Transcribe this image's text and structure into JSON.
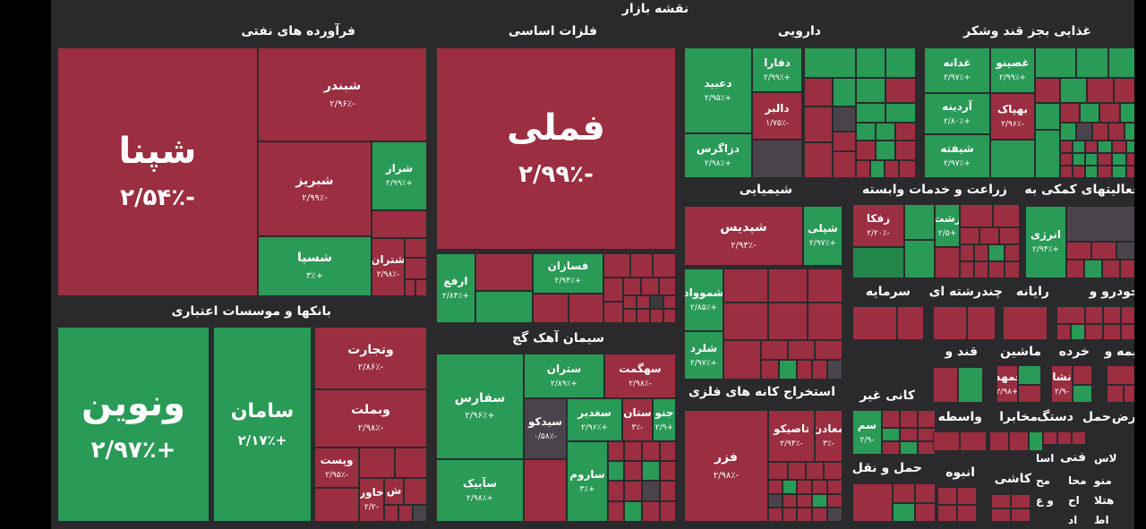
{
  "title": "نقشه بازار",
  "groups": [
    {
      "id": "oil",
      "label": "فرآورده های نفتی"
    },
    {
      "id": "metals",
      "label": "فلزات اساسی"
    },
    {
      "id": "pharma",
      "label": "دارویی"
    },
    {
      "id": "food",
      "label": "غذایی بجز قند وشکر"
    },
    {
      "id": "chem",
      "label": "شیمیایی"
    },
    {
      "id": "agri",
      "label": "زراعت و خدمات وابسته"
    },
    {
      "id": "support",
      "label": "فعالیتهای کمکی به"
    },
    {
      "id": "banks",
      "label": "بانکها و موسسات اعتباری"
    },
    {
      "id": "cement",
      "label": "سیمان آهک گچ"
    },
    {
      "id": "mining",
      "label": "استخراج کانه های فلزی"
    },
    {
      "id": "invest",
      "label": "سرمایه"
    },
    {
      "id": "multi",
      "label": "چندرشته ای"
    },
    {
      "id": "comp",
      "label": "رایانه"
    },
    {
      "id": "auto",
      "label": "خودرو و"
    },
    {
      "id": "sugar",
      "label": "قند و"
    },
    {
      "id": "machine",
      "label": "ماشین"
    },
    {
      "id": "retail",
      "label": "خرده"
    },
    {
      "id": "insur",
      "label": "بیمه و"
    },
    {
      "id": "nonmetal",
      "label": "کانی غیر"
    },
    {
      "id": "broker",
      "label": "واسطه"
    },
    {
      "id": "telecom",
      "label": "مخابرا"
    },
    {
      "id": "device",
      "label": "دستگ"
    },
    {
      "id": "transport",
      "label": "حمل"
    },
    {
      "id": "supply",
      "label": "عرض"
    },
    {
      "id": "transport2",
      "label": "حمل و نقل"
    },
    {
      "id": "mass",
      "label": "انبوه"
    },
    {
      "id": "tile",
      "label": "کاشی"
    },
    {
      "id": "tech",
      "label": "فنی"
    }
  ],
  "stocks": [
    {
      "id": "shepna",
      "name": "شپنا",
      "change": "-۲/۵۴٪"
    },
    {
      "id": "shebandar",
      "name": "شبندر",
      "change": "-۲/۹۶٪"
    },
    {
      "id": "shebriz",
      "name": "شبریز",
      "change": "-۲/۹۹٪"
    },
    {
      "id": "sheraz",
      "name": "شراز",
      "change": "+۲/۹۹٪"
    },
    {
      "id": "shespa",
      "name": "شسپا",
      "change": "+۳٪"
    },
    {
      "id": "sheteran",
      "name": "شتران",
      "change": "-۲/۹۸٪"
    },
    {
      "id": "fameli",
      "name": "فملی",
      "change": "-۲/۹۹٪"
    },
    {
      "id": "arfa",
      "name": "ارفع",
      "change": "+۲/۸۴٪"
    },
    {
      "id": "fesazan",
      "name": "فسازان",
      "change": "+۲/۹۴٪"
    },
    {
      "id": "dabid",
      "name": "دعبید",
      "change": "+۲/۹۵٪"
    },
    {
      "id": "dfara",
      "name": "دفارا",
      "change": "+۲/۹۹٪"
    },
    {
      "id": "dalber",
      "name": "دالبر",
      "change": "-۱/۷۵٪"
    },
    {
      "id": "dzagros",
      "name": "دزاگرس",
      "change": "+۲/۹۸٪"
    },
    {
      "id": "ghadaneh",
      "name": "غدانه",
      "change": "+۲/۹۷٪"
    },
    {
      "id": "ghesino",
      "name": "غصینو",
      "change": "+۲/۹۹٪"
    },
    {
      "id": "ghordineh",
      "name": "آردینه",
      "change": "+۲/۸۰٪"
    },
    {
      "id": "behpak",
      "name": "بهپاک",
      "change": "-۲/۹۶٪"
    },
    {
      "id": "shifteh",
      "name": "شیفته",
      "change": "+۲/۹۷٪"
    },
    {
      "id": "shepdis",
      "name": "شپدیس",
      "change": "-۲/۹۳٪"
    },
    {
      "id": "shepli",
      "name": "شپلی",
      "change": "+۲/۹۷٪"
    },
    {
      "id": "zefka",
      "name": "زفکا",
      "change": "-۲/۲۰٪"
    },
    {
      "id": "zesht",
      "name": "زشت",
      "change": "+۲/۵"
    },
    {
      "id": "energy",
      "name": "انرژی",
      "change": "+۲/۹۴٪"
    },
    {
      "id": "shamvad",
      "name": "شموواد",
      "change": "+۲/۸۵٪"
    },
    {
      "id": "sholard",
      "name": "شلرد",
      "change": "+۲/۹۷٪"
    },
    {
      "id": "vanovin",
      "name": "ونوین",
      "change": "+۲/۹۷٪"
    },
    {
      "id": "saman",
      "name": "سامان",
      "change": "+۲/۱۷٪"
    },
    {
      "id": "vtejarat",
      "name": "وتجارت",
      "change": "-۲/۸۶٪"
    },
    {
      "id": "vbemelt",
      "name": "وبملت",
      "change": "-۲/۹۸٪"
    },
    {
      "id": "vpost",
      "name": "وپست",
      "change": "-۲/۹۵٪"
    },
    {
      "id": "vkhavar",
      "name": "خاور",
      "change": "-۲/۲"
    },
    {
      "id": "vsh",
      "name": "ش",
      "change": ""
    },
    {
      "id": "safars",
      "name": "سفارس",
      "change": "+۲/۹۶٪"
    },
    {
      "id": "seteran",
      "name": "ستران",
      "change": "+۲/۸۹٪"
    },
    {
      "id": "sahgmat",
      "name": "سهگمت",
      "change": "-۲/۹۸٪"
    },
    {
      "id": "sidko",
      "name": "سیدکو",
      "change": "-۰/۵۸٪"
    },
    {
      "id": "seghadir",
      "name": "سغدیر",
      "change": "+۲/۹۶٪"
    },
    {
      "id": "setan",
      "name": "ستان",
      "change": "-۳٪"
    },
    {
      "id": "sjono",
      "name": "جنو",
      "change": "+۲/۹"
    },
    {
      "id": "sabik",
      "name": "سآبیک",
      "change": "+۲/۹۸٪"
    },
    {
      "id": "saroum",
      "name": "ساروم",
      "change": "+۳٪"
    },
    {
      "id": "fazar",
      "name": "فزر",
      "change": "-۲/۹۸٪"
    },
    {
      "id": "tapiko",
      "name": "تاصیکو",
      "change": "-۲/۹۴٪"
    },
    {
      "id": "madan",
      "name": "معادن",
      "change": "-۳٪"
    },
    {
      "id": "khamda",
      "name": "خمهدا",
      "change": "+۲/۹۸"
    },
    {
      "id": "nesha",
      "name": "نشا",
      "change": "-۲/۹"
    },
    {
      "id": "sam",
      "name": "سم",
      "change": "-۲/۹"
    }
  ],
  "fragments": [
    "اسا",
    "لاس",
    "فنی",
    "مح",
    "محا",
    "منو",
    "و ع",
    "اح",
    "هتلا",
    "اط",
    "اد"
  ]
}
